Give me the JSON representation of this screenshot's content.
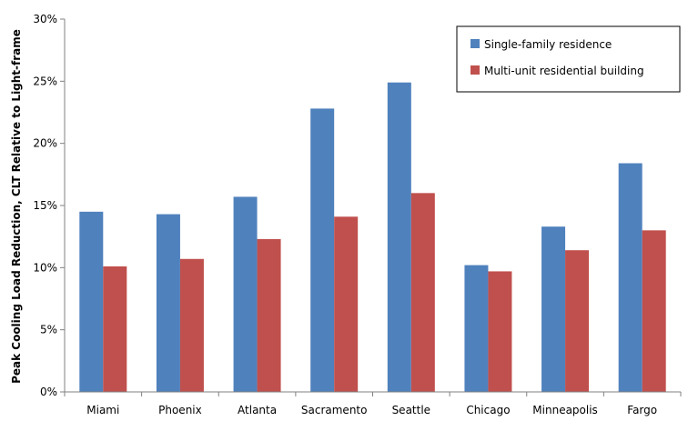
{
  "chart_data": {
    "type": "bar",
    "categories": [
      "Miami",
      "Phoenix",
      "Atlanta",
      "Sacramento",
      "Seattle",
      "Chicago",
      "Minneapolis",
      "Fargo"
    ],
    "series": [
      {
        "name": "Single-family residence",
        "color": "#4f81bd",
        "values": [
          14.5,
          14.3,
          15.7,
          22.8,
          24.9,
          10.2,
          13.3,
          18.4
        ]
      },
      {
        "name": "Multi-unit residential building",
        "color": "#c0504d",
        "values": [
          10.1,
          10.7,
          12.3,
          14.1,
          16.0,
          9.7,
          11.4,
          13.0
        ]
      }
    ],
    "ylabel": "Peak Cooling Load Reduction, CLT Relative to Light-frame",
    "xlabel": "",
    "ylim": [
      0,
      30
    ],
    "yticks": [
      0,
      5,
      10,
      15,
      20,
      25,
      30
    ],
    "ytick_labels": [
      "0%",
      "5%",
      "10%",
      "15%",
      "20%",
      "25%",
      "30%"
    ],
    "grid": false,
    "legend": "top-right"
  }
}
